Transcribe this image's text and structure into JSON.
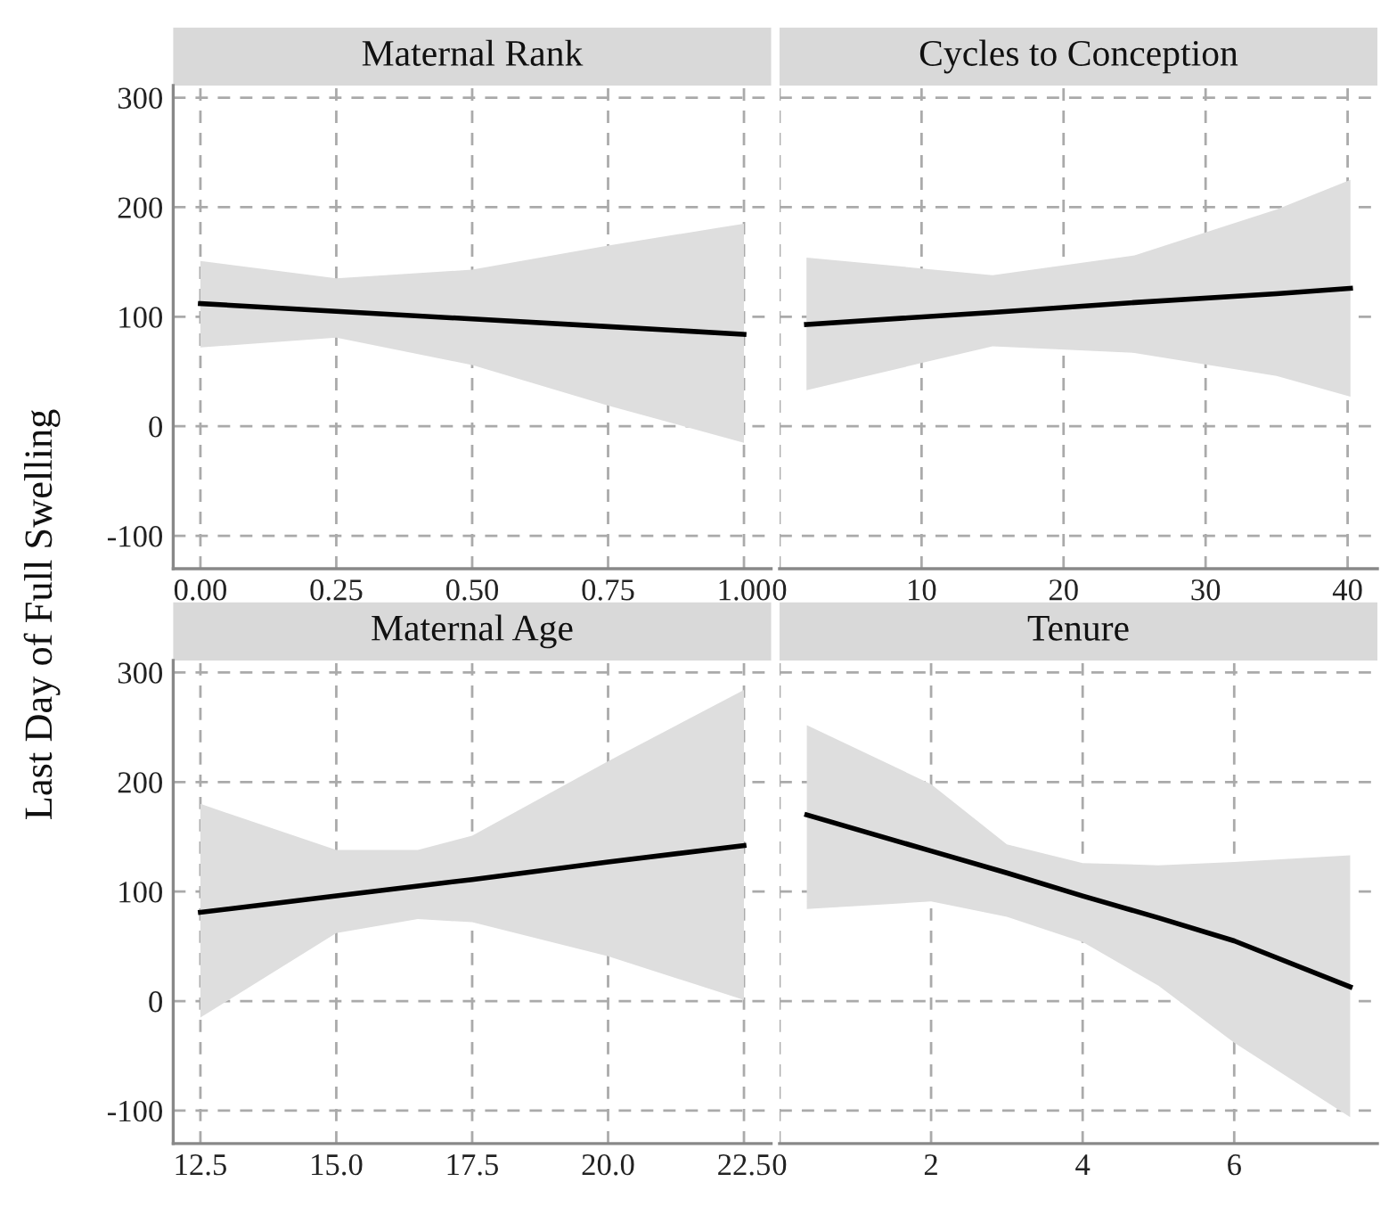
{
  "chart_data": [
    {
      "type": "line",
      "title": "Maternal Rank",
      "ylabel": "Last Day of Full Swelling",
      "xlim": [
        -0.05,
        1.05
      ],
      "xticks": [
        {
          "value": 0,
          "label": "0.00"
        },
        {
          "value": 0.25,
          "label": "0.25"
        },
        {
          "value": 0.5,
          "label": "0.50"
        },
        {
          "value": 0.75,
          "label": "0.75"
        },
        {
          "value": 1,
          "label": "1.00"
        }
      ],
      "ylim": [
        -130,
        311
      ],
      "yticks": [
        -100,
        0,
        100,
        200,
        300
      ],
      "grid": true,
      "series": [
        {
          "color": "#000000",
          "x": [
            0,
            0.25,
            0.5,
            0.75,
            1
          ],
          "values": [
            112,
            105,
            98,
            91,
            84
          ],
          "lower": [
            72,
            81,
            56,
            19,
            -15
          ],
          "upper": [
            151,
            135,
            143,
            165,
            185
          ]
        }
      ]
    },
    {
      "type": "line",
      "title": "Cycles to Conception",
      "xlim": [
        0,
        42.1
      ],
      "xticks": [
        0,
        10,
        20,
        30,
        40
      ],
      "ylim": [
        -130,
        311
      ],
      "yticks": [
        -100,
        0,
        100,
        200,
        300
      ],
      "grid": true,
      "tick_labels": "x",
      "series": [
        {
          "color": "#000000",
          "x": [
            1.9,
            15,
            25,
            35,
            40.2
          ],
          "values": [
            93,
            104,
            113,
            121,
            126
          ],
          "lower": [
            33,
            73,
            67,
            46,
            27
          ],
          "upper": [
            154,
            138,
            156,
            198,
            225
          ]
        }
      ]
    },
    {
      "type": "line",
      "title": "Maternal Age",
      "xlim": [
        12.0,
        23.0
      ],
      "xticks": [
        12.5,
        {
          "value": 15,
          "label": "15.0"
        },
        17.5,
        {
          "value": 20,
          "label": "20.0"
        },
        22.5
      ],
      "ylim": [
        -130,
        311
      ],
      "yticks": [
        -100,
        0,
        100,
        200,
        300
      ],
      "grid": true,
      "series": [
        {
          "color": "#000000",
          "x": [
            12.5,
            15,
            16.5,
            17.5,
            20,
            22.5
          ],
          "values": [
            81,
            96,
            105,
            111,
            127,
            142
          ],
          "lower": [
            -15,
            62,
            75,
            72,
            41,
            1
          ],
          "upper": [
            180,
            138,
            138,
            151,
            219,
            284
          ]
        }
      ]
    },
    {
      "type": "line",
      "title": "Tenure",
      "xlim": [
        0,
        7.89
      ],
      "xticks": [
        0,
        2,
        4,
        6
      ],
      "ylim": [
        -130,
        311
      ],
      "yticks": [
        -100,
        0,
        100,
        200,
        300
      ],
      "grid": true,
      "tick_labels": "x",
      "series": [
        {
          "color": "#000000",
          "x": [
            0.36,
            2,
            3,
            4,
            5,
            6,
            7.53
          ],
          "values": [
            170,
            137,
            117,
            96,
            76,
            55,
            13
          ],
          "lower": [
            84,
            91,
            77,
            54,
            14,
            -38,
            -106
          ],
          "upper": [
            252,
            198,
            143,
            126,
            124,
            127,
            133
          ]
        }
      ]
    }
  ]
}
